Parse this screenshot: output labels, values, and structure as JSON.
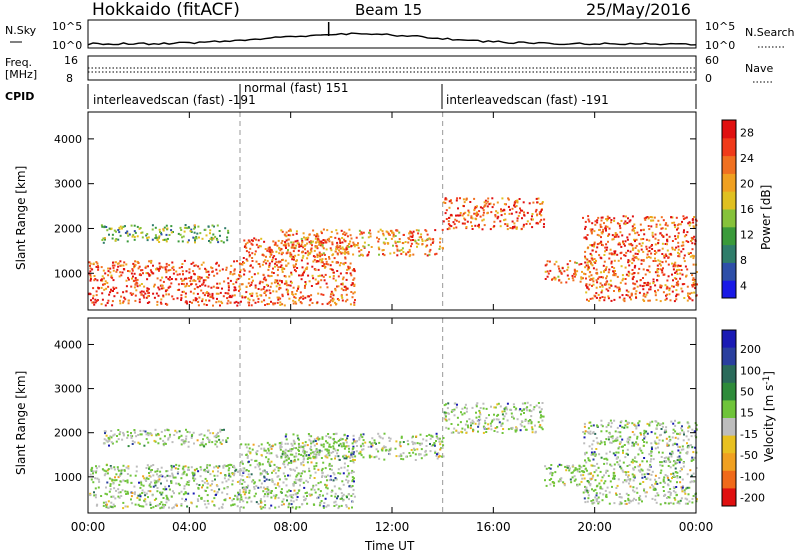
{
  "header": {
    "radar_label": "Hokkaido (fitACF)",
    "beam_label": "Beam 15",
    "date_label": "25/May/2016"
  },
  "noise_panel": {
    "left_label": "N.Sky",
    "right_label": "N.Search",
    "left_ticks": [
      "10^5",
      "10^0"
    ],
    "right_ticks": [
      "10^5",
      "10^0"
    ]
  },
  "freq_panel": {
    "left_label_line1": "Freq.",
    "left_label_line2": "[MHz]",
    "right_label": "Nave",
    "left_ticks": [
      "16",
      "8"
    ],
    "right_ticks": [
      "60",
      "0"
    ]
  },
  "cpid_panel": {
    "label": "CPID",
    "segments": [
      {
        "text": "interleavedscan (fast) -191",
        "start_hour": 0
      },
      {
        "text": "normal (fast) 151",
        "start_hour": 6
      },
      {
        "text": "interleavedscan (fast) -191",
        "start_hour": 14
      }
    ]
  },
  "colors": {
    "power_scale": [
      "#1a1ae6",
      "#2e4fa8",
      "#2f7d6a",
      "#3a9a3a",
      "#86c23a",
      "#e0c020",
      "#f0a020",
      "#f07020",
      "#f03a1a",
      "#e01010"
    ],
    "velocity_scale": [
      "#1a1ab4",
      "#2a3f9e",
      "#2a6a5a",
      "#2e8b3a",
      "#6fc43a",
      "#bdbdbd",
      "#e8c020",
      "#f0a020",
      "#f06a1a",
      "#e01010"
    ]
  },
  "chart_data": [
    {
      "type": "heatmap",
      "name": "power",
      "title": "",
      "xlabel": "Time UT",
      "ylabel": "Slant Range [km]",
      "x_ticks": [
        "00:00",
        "04:00",
        "08:00",
        "12:00",
        "16:00",
        "20:00",
        "00:00"
      ],
      "y_ticks": [
        1000,
        2000,
        3000,
        4000
      ],
      "xlim_hours": [
        0,
        24
      ],
      "ylim": [
        180,
        4600
      ],
      "colorbar": {
        "label": "Power [dB]",
        "ticks": [
          4,
          8,
          12,
          16,
          20,
          24,
          28
        ]
      },
      "echo_regions": [
        {
          "h0": 0.0,
          "h1": 6.0,
          "r0": 300,
          "r1": 1300,
          "value": 27
        },
        {
          "h0": 0.5,
          "h1": 5.5,
          "r0": 1700,
          "r1": 2100,
          "value": 14
        },
        {
          "h0": 6.0,
          "h1": 10.5,
          "r0": 300,
          "r1": 1800,
          "value": 26
        },
        {
          "h0": 7.5,
          "h1": 14.0,
          "r0": 1400,
          "r1": 2000,
          "value": 23
        },
        {
          "h0": 14.0,
          "h1": 18.0,
          "r0": 2000,
          "r1": 2700,
          "value": 26
        },
        {
          "h0": 18.0,
          "h1": 20.0,
          "r0": 800,
          "r1": 1300,
          "value": 24
        },
        {
          "h0": 19.5,
          "h1": 24.0,
          "r0": 400,
          "r1": 2300,
          "value": 26
        }
      ]
    },
    {
      "type": "heatmap",
      "name": "velocity",
      "title": "",
      "xlabel": "Time UT",
      "ylabel": "Slant Range [km]",
      "x_ticks": [
        "00:00",
        "04:00",
        "08:00",
        "12:00",
        "16:00",
        "20:00",
        "00:00"
      ],
      "y_ticks": [
        1000,
        2000,
        3000,
        4000
      ],
      "xlim_hours": [
        0,
        24
      ],
      "ylim": [
        180,
        4600
      ],
      "colorbar": {
        "label": "Velocity [m s^-1]",
        "ticks": [
          200,
          100,
          50,
          15,
          -15,
          -50,
          -100,
          -200
        ]
      },
      "echo_regions": [
        {
          "h0": 0.0,
          "h1": 6.0,
          "r0": 300,
          "r1": 1300,
          "value": 0
        },
        {
          "h0": 0.5,
          "h1": 5.5,
          "r0": 1700,
          "r1": 2100,
          "value": 0
        },
        {
          "h0": 6.0,
          "h1": 10.5,
          "r0": 300,
          "r1": 1800,
          "value": 0
        },
        {
          "h0": 7.5,
          "h1": 14.0,
          "r0": 1400,
          "r1": 2000,
          "value": 0
        },
        {
          "h0": 14.0,
          "h1": 18.0,
          "r0": 2000,
          "r1": 2700,
          "value": 0
        },
        {
          "h0": 18.0,
          "h1": 20.0,
          "r0": 800,
          "r1": 1300,
          "value": 0
        },
        {
          "h0": 19.5,
          "h1": 24.0,
          "r0": 400,
          "r1": 2300,
          "value": 0
        }
      ]
    }
  ]
}
